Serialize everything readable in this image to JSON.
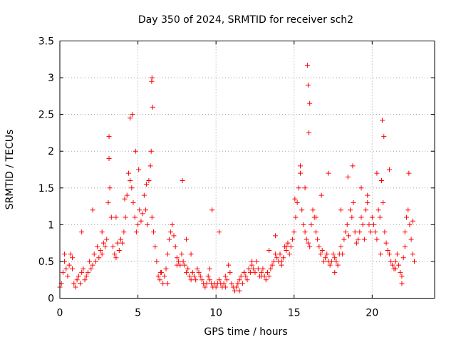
{
  "chart_data": {
    "type": "scatter",
    "title": "Day 350 of 2024, SRMTID for receiver sch2",
    "xlabel": "GPS time / hours",
    "ylabel": "SRMTID / TECUs",
    "xlim": [
      0,
      24
    ],
    "ylim": [
      0,
      3.5
    ],
    "xticks": [
      0,
      5,
      10,
      15,
      20
    ],
    "xtick_labels": [
      "0",
      "5",
      "10",
      "15",
      "20"
    ],
    "yticks": [
      0,
      0.5,
      1,
      1.5,
      2,
      2.5,
      3,
      3.5
    ],
    "ytick_labels": [
      "0",
      "0.5",
      "1",
      "1.5",
      "2",
      "2.5",
      "3",
      "3.5"
    ],
    "grid": true,
    "marker": "+",
    "series": [
      {
        "name": "SRMTID",
        "color": "#ff0000",
        "x": [
          0.0,
          0.1,
          0.2,
          0.3,
          0.4,
          0.5,
          0.6,
          0.7,
          0.8,
          0.9,
          1.0,
          1.1,
          1.2,
          1.3,
          1.4,
          1.5,
          1.6,
          1.7,
          1.8,
          1.9,
          2.0,
          2.1,
          2.2,
          2.3,
          2.4,
          2.5,
          2.6,
          2.7,
          2.8,
          2.9,
          3.0,
          3.1,
          3.2,
          3.3,
          3.4,
          3.5,
          3.6,
          3.7,
          3.8,
          3.9,
          4.0,
          4.1,
          4.2,
          4.3,
          4.4,
          4.5,
          4.6,
          4.7,
          4.8,
          4.9,
          5.0,
          5.1,
          5.2,
          5.3,
          5.4,
          5.5,
          5.6,
          5.7,
          5.8,
          5.9,
          6.0,
          6.1,
          6.2,
          6.3,
          6.4,
          6.5,
          6.6,
          6.7,
          6.8,
          6.9,
          7.0,
          7.1,
          7.2,
          7.3,
          7.4,
          7.5,
          7.6,
          7.7,
          7.8,
          7.9,
          8.0,
          8.1,
          8.2,
          8.3,
          8.4,
          8.5,
          8.6,
          8.7,
          8.8,
          8.9,
          9.0,
          9.1,
          9.2,
          9.3,
          9.4,
          9.5,
          9.6,
          9.7,
          9.8,
          9.9,
          10.0,
          10.1,
          10.2,
          10.3,
          10.4,
          10.5,
          10.6,
          10.7,
          10.8,
          10.9,
          11.0,
          11.1,
          11.2,
          11.3,
          11.4,
          11.5,
          11.6,
          11.7,
          11.8,
          11.9,
          12.0,
          12.1,
          12.2,
          12.3,
          12.4,
          12.5,
          12.6,
          12.7,
          12.8,
          12.9,
          13.0,
          13.1,
          13.2,
          13.3,
          13.4,
          13.5,
          13.6,
          13.7,
          13.8,
          13.9,
          14.0,
          14.1,
          14.2,
          14.3,
          14.4,
          14.5,
          14.6,
          14.7,
          14.8,
          14.9,
          15.0,
          15.1,
          15.2,
          15.3,
          15.4,
          15.5,
          15.6,
          15.7,
          15.8,
          15.9,
          16.0,
          16.1,
          16.2,
          16.3,
          16.4,
          16.5,
          16.6,
          16.7,
          16.8,
          16.9,
          17.0,
          17.1,
          17.2,
          17.3,
          17.4,
          17.5,
          17.6,
          17.7,
          17.8,
          17.9,
          18.0,
          18.1,
          18.2,
          18.3,
          18.4,
          18.5,
          18.6,
          18.7,
          18.8,
          18.9,
          19.0,
          19.1,
          19.2,
          19.3,
          19.4,
          19.5,
          19.6,
          19.7,
          19.8,
          19.9,
          20.0,
          20.1,
          20.2,
          20.3,
          20.4,
          20.5,
          20.6,
          20.7,
          20.8,
          20.9,
          21.0,
          21.1,
          21.2,
          21.3,
          21.4,
          21.5,
          21.6,
          21.7,
          21.8,
          21.9,
          22.0,
          22.1,
          22.2,
          22.3,
          22.4,
          22.5,
          22.6,
          22.7,
          0.3,
          0.8,
          1.4,
          2.1,
          2.7,
          3.15,
          3.15,
          3.6,
          4.15,
          4.5,
          4.65,
          4.85,
          5.05,
          5.55,
          5.85,
          5.88,
          5.9,
          5.95,
          6.45,
          6.9,
          7.5,
          7.85,
          8.1,
          8.4,
          9.6,
          9.75,
          10.2,
          10.6,
          11.5,
          11.8,
          12.3,
          12.9,
          13.4,
          13.8,
          14.2,
          14.5,
          15.05,
          15.4,
          15.7,
          15.85,
          15.9,
          15.95,
          16.0,
          16.4,
          16.75,
          17.2,
          17.6,
          18.0,
          18.45,
          18.75,
          19.3,
          19.7,
          20.3,
          20.55,
          20.65,
          20.75,
          21.1,
          21.5,
          21.9,
          22.1,
          22.35,
          22.6
        ],
        "y": [
          0.15,
          0.2,
          0.35,
          0.5,
          0.4,
          0.3,
          0.45,
          0.6,
          0.4,
          0.2,
          0.15,
          0.25,
          0.3,
          0.2,
          0.35,
          0.4,
          0.25,
          0.3,
          0.35,
          0.5,
          0.4,
          0.45,
          0.6,
          0.5,
          0.7,
          0.55,
          0.65,
          0.6,
          0.75,
          0.7,
          0.8,
          1.3,
          1.5,
          1.1,
          0.7,
          0.6,
          0.55,
          0.75,
          0.65,
          0.8,
          0.75,
          0.9,
          1.1,
          1.4,
          1.7,
          1.6,
          1.5,
          1.3,
          1.1,
          0.9,
          1.0,
          1.2,
          1.05,
          1.15,
          1.4,
          1.2,
          1.0,
          1.6,
          1.8,
          1.1,
          0.9,
          0.7,
          0.5,
          0.3,
          0.25,
          0.35,
          0.2,
          0.3,
          0.4,
          0.6,
          0.8,
          0.9,
          1.0,
          0.85,
          0.7,
          0.55,
          0.5,
          0.45,
          0.6,
          0.5,
          0.45,
          0.35,
          0.4,
          0.3,
          0.25,
          0.35,
          0.3,
          0.25,
          0.4,
          0.35,
          0.3,
          0.25,
          0.2,
          0.15,
          0.2,
          0.3,
          0.25,
          0.2,
          0.15,
          0.2,
          0.15,
          0.2,
          0.25,
          0.2,
          0.15,
          0.2,
          0.3,
          0.25,
          0.45,
          0.35,
          0.2,
          0.15,
          0.1,
          0.15,
          0.2,
          0.25,
          0.3,
          0.2,
          0.35,
          0.3,
          0.25,
          0.4,
          0.35,
          0.45,
          0.4,
          0.35,
          0.5,
          0.4,
          0.3,
          0.35,
          0.4,
          0.3,
          0.25,
          0.35,
          0.3,
          0.4,
          0.45,
          0.5,
          0.6,
          0.55,
          0.5,
          0.6,
          0.45,
          0.55,
          0.7,
          0.65,
          0.75,
          0.6,
          0.7,
          0.8,
          0.9,
          1.1,
          1.3,
          1.5,
          1.7,
          1.2,
          1.0,
          0.9,
          0.8,
          0.75,
          0.7,
          1.0,
          1.2,
          1.1,
          0.9,
          0.8,
          0.7,
          0.6,
          0.65,
          0.5,
          0.55,
          0.6,
          0.5,
          0.45,
          0.5,
          0.6,
          0.55,
          0.5,
          0.45,
          0.6,
          0.7,
          0.6,
          0.8,
          0.9,
          1.0,
          0.85,
          1.2,
          1.1,
          1.3,
          0.9,
          0.75,
          0.8,
          0.9,
          1.1,
          1.0,
          0.8,
          1.2,
          1.3,
          1.0,
          0.9,
          1.1,
          1.0,
          0.9,
          0.8,
          1.2,
          1.1,
          1.6,
          1.3,
          0.9,
          0.75,
          0.65,
          0.6,
          0.5,
          0.45,
          0.4,
          0.5,
          0.6,
          0.45,
          0.35,
          0.3,
          0.55,
          0.9,
          1.1,
          1.2,
          1.0,
          0.8,
          0.6,
          0.5,
          0.6,
          0.55,
          0.9,
          1.2,
          0.9,
          2.2,
          1.9,
          1.1,
          1.35,
          2.45,
          2.5,
          2.0,
          1.75,
          1.55,
          2.0,
          2.95,
          3.0,
          2.6,
          0.35,
          0.2,
          0.45,
          1.6,
          0.8,
          0.6,
          0.4,
          1.2,
          0.9,
          0.15,
          0.1,
          0.35,
          0.5,
          0.3,
          0.65,
          0.85,
          0.5,
          0.7,
          1.35,
          1.8,
          1.5,
          3.17,
          2.9,
          2.25,
          2.65,
          1.1,
          1.4,
          1.7,
          0.35,
          1.2,
          1.65,
          1.8,
          1.5,
          1.4,
          1.7,
          0.6,
          2.42,
          2.2,
          1.75,
          0.4,
          0.2,
          0.7,
          1.7,
          1.05
        ]
      }
    ]
  }
}
